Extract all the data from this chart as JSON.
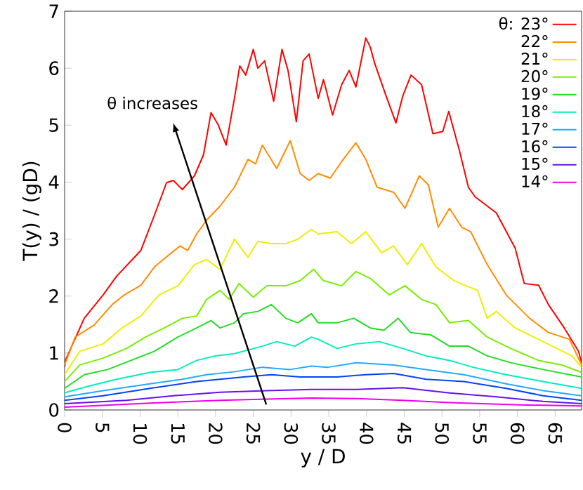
{
  "chart_data": {
    "type": "line",
    "xlabel": "y / D",
    "ylabel": "T(y) / (gD)",
    "xlim": [
      0,
      68.5
    ],
    "ylim": [
      0,
      7
    ],
    "xticks": [
      0,
      5,
      10,
      15,
      20,
      25,
      30,
      35,
      40,
      45,
      50,
      55,
      60,
      65
    ],
    "yticks": [
      0,
      1,
      2,
      3,
      4,
      5,
      6,
      7
    ],
    "legend": "top right",
    "annotations": [
      "θ increases"
    ],
    "series": [
      {
        "name": "θ: 23°",
        "color": "#ff0000",
        "x": [
          0,
          0.1,
          2.6,
          5.1,
          6.9,
          10.1,
          11.9,
          13.5,
          14.4,
          15.6,
          17.2,
          18.4,
          19.4,
          20.3,
          21.4,
          22.5,
          23.2,
          24.0,
          25.0,
          25.6,
          26.5,
          27.7,
          28.8,
          29.6,
          30.7,
          31.6,
          32.4,
          33.6,
          34.3,
          35.5,
          36.7,
          37.7,
          38.6,
          39.9,
          40.5,
          41.1,
          42.6,
          43.9,
          44.8,
          45.9,
          47.3,
          48.8,
          50.1,
          50.9,
          52.3,
          53.5,
          54.4,
          57.2,
          59.7,
          60.9,
          62.8,
          64.1,
          66.2,
          68.1,
          68.5
        ],
        "values": [
          0.75,
          0.87,
          1.61,
          2.02,
          2.35,
          2.8,
          3.42,
          3.99,
          4.03,
          3.87,
          4.11,
          4.48,
          5.22,
          5.02,
          4.65,
          5.47,
          6.04,
          5.88,
          6.33,
          6.0,
          6.13,
          5.42,
          6.33,
          5.96,
          5.06,
          6.13,
          6.25,
          5.47,
          5.8,
          5.18,
          5.71,
          5.96,
          5.67,
          6.53,
          6.37,
          6.08,
          5.51,
          5.04,
          5.51,
          5.88,
          5.71,
          4.85,
          4.89,
          5.24,
          4.56,
          3.91,
          3.74,
          3.46,
          2.84,
          2.22,
          2.19,
          1.85,
          1.44,
          1.03,
          0.83
        ]
      },
      {
        "name": "22°",
        "color": "#ff8c00",
        "x": [
          0,
          1.4,
          3.9,
          6.3,
          7.9,
          10.1,
          11.9,
          13.8,
          15.3,
          16.3,
          17.5,
          18.8,
          20.6,
          22.5,
          24.3,
          25.3,
          26.2,
          28.1,
          29.9,
          31.2,
          32.4,
          33.6,
          35.2,
          36.7,
          38.6,
          39.9,
          41.4,
          43.6,
          45.1,
          47.0,
          48.2,
          49.5,
          51.0,
          52.6,
          53.8,
          56.0,
          58.5,
          61.6,
          64.1,
          66.9,
          68.5
        ],
        "values": [
          0.79,
          1.28,
          1.49,
          1.85,
          2.02,
          2.19,
          2.51,
          2.72,
          2.88,
          2.8,
          3.09,
          3.33,
          3.58,
          3.91,
          4.4,
          4.32,
          4.65,
          4.24,
          4.73,
          4.15,
          4.03,
          4.15,
          4.07,
          4.36,
          4.69,
          4.4,
          3.91,
          3.82,
          3.54,
          4.11,
          3.95,
          3.21,
          3.54,
          3.21,
          3.13,
          2.55,
          2.02,
          1.61,
          1.36,
          1.24,
          0.79
        ]
      },
      {
        "name": "21°",
        "color": "#eeee00",
        "x": [
          0,
          2.0,
          5.1,
          7.6,
          10.1,
          12.5,
          15.0,
          17.2,
          18.8,
          20.6,
          22.5,
          24.3,
          25.6,
          27.4,
          29.3,
          30.9,
          32.7,
          33.6,
          36.1,
          38.0,
          39.9,
          42.0,
          43.6,
          45.4,
          47.3,
          49.2,
          51.6,
          54.7,
          56.0,
          57.2,
          59.7,
          63.4,
          67.2,
          68.5
        ],
        "values": [
          0.62,
          1.03,
          1.16,
          1.44,
          1.65,
          2.02,
          2.18,
          2.55,
          2.64,
          2.47,
          3.0,
          2.68,
          2.96,
          2.92,
          2.92,
          3.0,
          3.17,
          3.09,
          3.13,
          2.92,
          3.13,
          2.76,
          2.88,
          2.55,
          2.92,
          2.51,
          2.27,
          2.1,
          1.61,
          1.73,
          1.44,
          1.2,
          0.95,
          0.75
        ]
      },
      {
        "name": "20°",
        "color": "#77ee00",
        "x": [
          0,
          2.0,
          5.1,
          8.2,
          10.7,
          13.2,
          15.6,
          17.5,
          18.8,
          20.6,
          21.8,
          23.1,
          25.0,
          26.8,
          29.3,
          31.2,
          33.0,
          34.3,
          36.7,
          38.6,
          40.5,
          43.0,
          45.1,
          47.3,
          49.2,
          51.0,
          53.5,
          56.0,
          59.1,
          62.8,
          65.9,
          68.5
        ],
        "values": [
          0.5,
          0.79,
          0.91,
          1.08,
          1.28,
          1.44,
          1.61,
          1.65,
          1.94,
          2.1,
          1.94,
          2.22,
          1.98,
          2.18,
          2.18,
          2.27,
          2.47,
          2.27,
          2.18,
          2.43,
          2.31,
          2.02,
          2.18,
          1.94,
          1.85,
          1.53,
          1.57,
          1.28,
          1.08,
          0.87,
          0.79,
          0.66
        ]
      },
      {
        "name": "19°",
        "color": "#22dd22",
        "x": [
          0,
          2.6,
          5.7,
          8.8,
          11.9,
          15.0,
          17.5,
          19.4,
          20.6,
          22.5,
          23.7,
          25.6,
          27.4,
          29.3,
          30.9,
          32.7,
          33.6,
          36.1,
          38.3,
          40.5,
          42.3,
          44.2,
          45.8,
          48.5,
          51.0,
          53.5,
          56.0,
          59.1,
          63.4,
          68.5
        ],
        "values": [
          0.38,
          0.62,
          0.71,
          0.87,
          1.03,
          1.28,
          1.44,
          1.57,
          1.44,
          1.53,
          1.69,
          1.73,
          1.85,
          1.61,
          1.53,
          1.69,
          1.53,
          1.53,
          1.61,
          1.44,
          1.4,
          1.61,
          1.36,
          1.32,
          1.12,
          1.12,
          0.95,
          0.83,
          0.71,
          0.58
        ]
      },
      {
        "name": "18°",
        "color": "#00eebb",
        "x": [
          0,
          3.2,
          6.9,
          11.3,
          15.0,
          17.5,
          20.0,
          22.5,
          26.2,
          28.1,
          30.5,
          32.7,
          33.6,
          36.1,
          38.6,
          41.7,
          44.8,
          47.9,
          51.0,
          54.1,
          58.5,
          63.4,
          68.5
        ],
        "values": [
          0.3,
          0.42,
          0.54,
          0.66,
          0.71,
          0.87,
          0.95,
          0.99,
          1.12,
          1.2,
          1.12,
          1.28,
          1.24,
          1.08,
          1.16,
          1.2,
          1.08,
          0.95,
          0.87,
          0.75,
          0.62,
          0.5,
          0.38
        ]
      },
      {
        "name": "17°",
        "color": "#22aaff",
        "x": [
          0,
          5.1,
          11.3,
          15.6,
          18.8,
          22.5,
          26.2,
          29.9,
          32.7,
          34.9,
          38.6,
          43.6,
          47.9,
          52.9,
          58.5,
          63.4,
          68.5
        ],
        "values": [
          0.23,
          0.34,
          0.46,
          0.54,
          0.62,
          0.67,
          0.75,
          0.71,
          0.77,
          0.75,
          0.83,
          0.79,
          0.71,
          0.62,
          0.46,
          0.34,
          0.25
        ]
      },
      {
        "name": "16°",
        "color": "#0044ff",
        "x": [
          0,
          5.1,
          11.3,
          17.5,
          23.7,
          27.4,
          31.2,
          36.1,
          39.9,
          43.6,
          47.9,
          52.9,
          58.5,
          63.4,
          68.5
        ],
        "values": [
          0.17,
          0.25,
          0.38,
          0.5,
          0.58,
          0.62,
          0.58,
          0.58,
          0.62,
          0.64,
          0.54,
          0.5,
          0.38,
          0.25,
          0.17
        ]
      },
      {
        "name": "15°",
        "color": "#6611ee",
        "x": [
          0,
          8.2,
          14.4,
          20.6,
          26.8,
          32.7,
          38.6,
          44.8,
          51.0,
          57.2,
          63.4,
          68.5
        ],
        "values": [
          0.11,
          0.17,
          0.25,
          0.31,
          0.34,
          0.36,
          0.36,
          0.39,
          0.3,
          0.23,
          0.15,
          0.11
        ]
      },
      {
        "name": "14°",
        "color": "#ee00ee",
        "x": [
          0,
          11.3,
          20.6,
          26.8,
          32.7,
          38.6,
          44.8,
          51.0,
          60.3,
          68.5
        ],
        "values": [
          0.05,
          0.12,
          0.17,
          0.19,
          0.21,
          0.2,
          0.17,
          0.13,
          0.09,
          0.07
        ]
      }
    ]
  }
}
